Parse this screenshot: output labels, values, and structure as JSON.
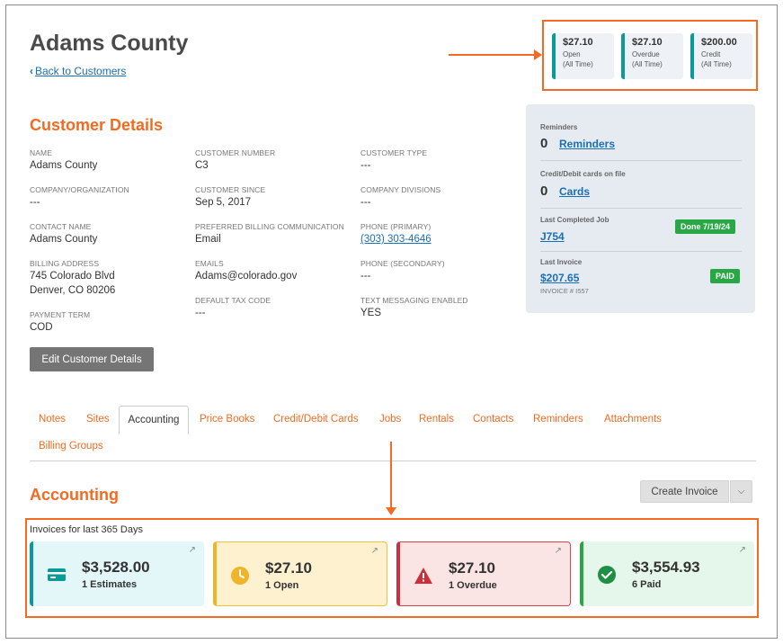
{
  "header": {
    "title": "Adams County",
    "back_label": "Back to Customers"
  },
  "summary": [
    {
      "amount": "$27.10",
      "label": "Open",
      "sub": "(All Time)"
    },
    {
      "amount": "$27.10",
      "label": "Overdue",
      "sub": "(All Time)"
    },
    {
      "amount": "$200.00",
      "label": "Credit",
      "sub": "(All Time)"
    }
  ],
  "details": {
    "title": "Customer Details",
    "fields": {
      "name": {
        "label": "NAME",
        "value": "Adams County"
      },
      "customer_number": {
        "label": "CUSTOMER NUMBER",
        "value": "C3"
      },
      "customer_type": {
        "label": "CUSTOMER TYPE",
        "value": "---"
      },
      "company": {
        "label": "COMPANY/ORGANIZATION",
        "value": "---"
      },
      "customer_since": {
        "label": "CUSTOMER SINCE",
        "value": "Sep 5, 2017"
      },
      "company_divisions": {
        "label": "COMPANY DIVISIONS",
        "value": "---"
      },
      "contact_name": {
        "label": "CONTACT NAME",
        "value": "Adams County"
      },
      "preferred_billing": {
        "label": "PREFERRED BILLING COMMUNICATION",
        "value": "Email"
      },
      "phone_primary": {
        "label": "PHONE (PRIMARY)",
        "value": "(303) 303-4646"
      },
      "billing_address": {
        "label": "BILLING ADDRESS",
        "line1": "745 Colorado Blvd",
        "line2": "Denver, CO 80206"
      },
      "emails": {
        "label": "EMAILS",
        "value": "Adams@colorado.gov"
      },
      "phone_secondary": {
        "label": "PHONE (SECONDARY)",
        "value": "---"
      },
      "default_tax_code": {
        "label": "DEFAULT TAX CODE",
        "value": "---"
      },
      "text_messaging": {
        "label": "TEXT MESSAGING ENABLED",
        "value": "YES"
      },
      "payment_term": {
        "label": "PAYMENT TERM",
        "value": "COD"
      }
    },
    "edit_button": "Edit Customer Details"
  },
  "side_panel": {
    "reminders_label": "Reminders",
    "reminders_count": "0",
    "reminders_link": "Reminders",
    "cards_label": "Credit/Debit cards on file",
    "cards_count": "0",
    "cards_link": "Cards",
    "last_job_label": "Last Completed Job",
    "last_job_link": "J754",
    "last_job_badge": "Done 7/19/24",
    "last_invoice_label": "Last Invoice",
    "last_invoice_link": "$207.65",
    "last_invoice_number": "INVOICE # I557",
    "last_invoice_badge": "PAID"
  },
  "tabs": {
    "notes": "Notes",
    "sites": "Sites",
    "accounting": "Accounting",
    "price_books": "Price Books",
    "cards": "Credit/Debit Cards",
    "jobs": "Jobs",
    "rentals": "Rentals",
    "contacts": "Contacts",
    "reminders": "Reminders",
    "attachments": "Attachments",
    "billing_groups": "Billing Groups"
  },
  "accounting": {
    "title": "Accounting",
    "create_button": "Create Invoice",
    "period_label": "Invoices for last 365 Days",
    "cards": [
      {
        "amount": "$3,528.00",
        "sub": "1 Estimates"
      },
      {
        "amount": "$27.10",
        "sub": "1 Open"
      },
      {
        "amount": "$27.10",
        "sub": "1 Overdue"
      },
      {
        "amount": "$3,554.93",
        "sub": "6 Paid"
      }
    ]
  },
  "colors": {
    "accent": "#f26b21",
    "teal": "#0b9a9a",
    "link": "#1a6fb5",
    "paid_green": "#27a844",
    "open_yellow": "#f0b429",
    "overdue_red": "#c9303c"
  }
}
